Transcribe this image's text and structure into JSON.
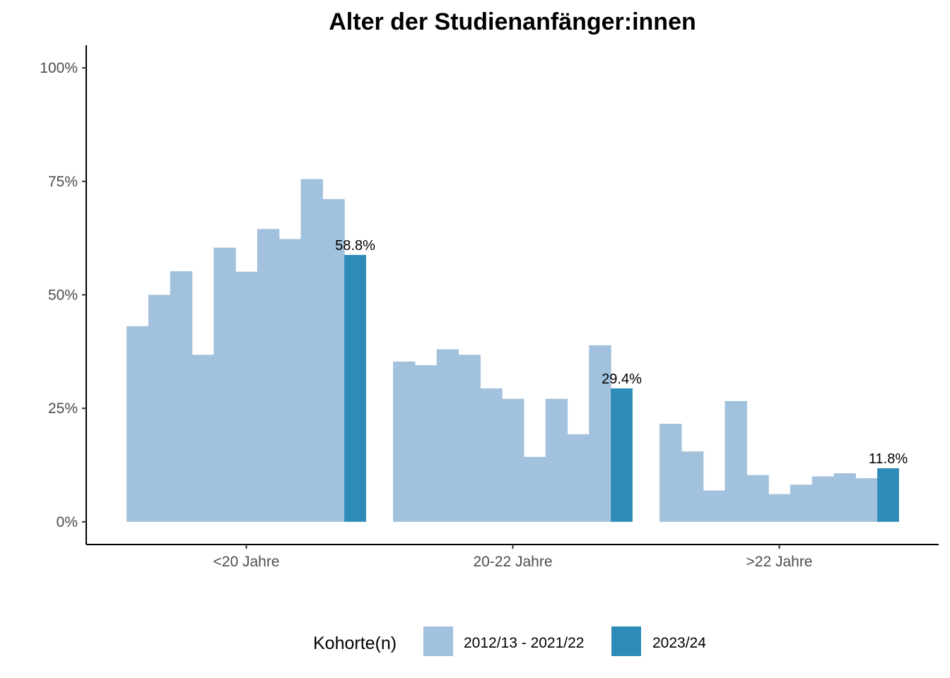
{
  "chart_data": {
    "type": "bar",
    "title": "Alter der Studienanfänger:innen",
    "xlabel": "",
    "ylabel": "",
    "ylim": [
      -0.05,
      1.05
    ],
    "y_ticks": [
      {
        "value": 0,
        "label": "0%"
      },
      {
        "value": 0.25,
        "label": "25%"
      },
      {
        "value": 0.5,
        "label": "50%"
      },
      {
        "value": 0.75,
        "label": "75%"
      },
      {
        "value": 1.0,
        "label": "100%"
      }
    ],
    "categories": [
      "<20 Jahre",
      "20-22 Jahre",
      ">22 Jahre"
    ],
    "colors": {
      "historic": "#a1c1dc",
      "current": "#2e8bb8"
    },
    "series": [
      {
        "name": "2012/13 - 2021/22",
        "color": "#a1c1dc",
        "values": [
          [
            0.431,
            0.5,
            0.552,
            0.368,
            0.604,
            0.551,
            0.645,
            0.623,
            0.755,
            0.711
          ],
          [
            0.353,
            0.345,
            0.38,
            0.368,
            0.294,
            0.271,
            0.143,
            0.271,
            0.193,
            0.389
          ],
          [
            0.216,
            0.155,
            0.069,
            0.266,
            0.103,
            0.061,
            0.082,
            0.1,
            0.107,
            0.096
          ]
        ]
      },
      {
        "name": "2023/24",
        "color": "#2e8bb8",
        "values": [
          0.588,
          0.294,
          0.118
        ],
        "labels": [
          "58.8%",
          "29.4%",
          "11.8%"
        ]
      }
    ],
    "legend": {
      "title": "Kohorte(n)",
      "position": "bottom",
      "items": [
        {
          "label": "2012/13 - 2021/22",
          "color": "#a1c1dc"
        },
        {
          "label": "2023/24",
          "color": "#2e8bb8"
        }
      ]
    },
    "grid": false
  }
}
